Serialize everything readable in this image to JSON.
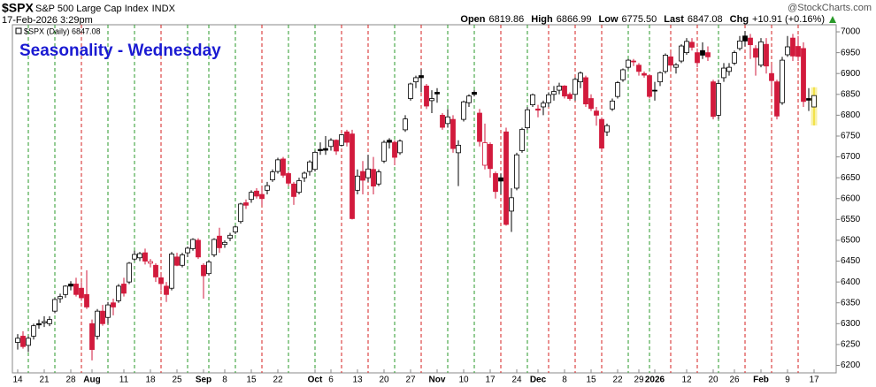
{
  "symbol": "$SPX",
  "name": "S&P 500 Large Cap Index",
  "exchange": "INDX",
  "datetime": "17-Feb-2026 3:29pm",
  "quote": {
    "open_label": "Open",
    "open": "6819.86",
    "high_label": "High",
    "high": "6866.99",
    "low_label": "Low",
    "low": "6775.50",
    "last_label": "Last",
    "last": "6847.08",
    "chg_label": "Chg",
    "chg": "+10.91 (+0.16%)"
  },
  "watermark": "@StockCharts.com",
  "chart_data": {
    "type": "candlestick",
    "title": "Seasonality - Wednesday",
    "legend": "$SPX (Daily) 6847.08",
    "up_color": "#000000",
    "down_color": "#d21a3c",
    "latest_color": "#f2e24a",
    "grid": false,
    "ylim": [
      6182,
      7017
    ],
    "yticks": [
      6200,
      6250,
      6300,
      6350,
      6400,
      6450,
      6500,
      6550,
      6600,
      6650,
      6700,
      6750,
      6800,
      6850,
      6900,
      6950,
      7000
    ],
    "categories": [
      "14",
      null,
      null,
      null,
      null,
      "21",
      null,
      null,
      null,
      null,
      "28",
      null,
      null,
      null,
      "Aug",
      null,
      null,
      null,
      null,
      null,
      "11",
      null,
      null,
      null,
      null,
      "18",
      null,
      null,
      null,
      null,
      "25",
      null,
      null,
      null,
      null,
      "Sep",
      null,
      null,
      null,
      "8",
      null,
      null,
      null,
      null,
      "15",
      null,
      null,
      null,
      null,
      "22",
      null,
      null,
      null,
      null,
      null,
      null,
      "Oct",
      null,
      null,
      "6",
      null,
      null,
      null,
      null,
      "13",
      null,
      null,
      null,
      null,
      "20",
      null,
      null,
      null,
      null,
      "27",
      null,
      null,
      null,
      null,
      "Nov",
      null,
      null,
      null,
      null,
      "10",
      null,
      null,
      null,
      null,
      "17",
      null,
      null,
      null,
      null,
      "24",
      null,
      null,
      null,
      "Dec",
      null,
      null,
      null,
      null,
      "8",
      null,
      null,
      null,
      null,
      "15",
      null,
      null,
      null,
      null,
      "22",
      null,
      null,
      null,
      "29",
      null,
      null,
      "2026",
      null,
      null,
      null,
      null,
      null,
      "12",
      null,
      null,
      null,
      null,
      "20",
      null,
      null,
      null,
      "26",
      null,
      null,
      null,
      null,
      "Feb",
      null,
      null,
      null,
      null,
      "9",
      null,
      null,
      null,
      null,
      "17"
    ],
    "ohlc": [
      [
        6255,
        6275,
        6238,
        6265
      ],
      [
        6270,
        6282,
        6240,
        6245
      ],
      [
        6248,
        6270,
        6232,
        6265
      ],
      [
        6270,
        6300,
        6262,
        6295
      ],
      [
        6300,
        6310,
        6288,
        6297
      ],
      [
        6302,
        6318,
        6292,
        6305
      ],
      [
        6300,
        6318,
        6294,
        6310
      ],
      [
        6330,
        6362,
        6325,
        6358
      ],
      [
        6360,
        6372,
        6350,
        6365
      ],
      [
        6370,
        6392,
        6362,
        6390
      ],
      [
        6395,
        6402,
        6380,
        6390
      ],
      [
        6395,
        6410,
        6365,
        6370
      ],
      [
        6385,
        6400,
        6355,
        6362
      ],
      [
        6370,
        6428,
        6335,
        6340
      ],
      [
        6300,
        6310,
        6212,
        6238
      ],
      [
        6270,
        6335,
        6262,
        6330
      ],
      [
        6330,
        6345,
        6295,
        6300
      ],
      [
        6315,
        6352,
        6300,
        6345
      ],
      [
        6350,
        6360,
        6320,
        6340
      ],
      [
        6355,
        6395,
        6350,
        6390
      ],
      [
        6395,
        6410,
        6365,
        6373
      ],
      [
        6400,
        6448,
        6395,
        6445
      ],
      [
        6455,
        6475,
        6450,
        6466
      ],
      [
        6458,
        6472,
        6450,
        6468
      ],
      [
        6470,
        6480,
        6442,
        6450
      ],
      [
        6445,
        6455,
        6435,
        6449
      ],
      [
        6440,
        6445,
        6400,
        6412
      ],
      [
        6410,
        6420,
        6380,
        6396
      ],
      [
        6390,
        6400,
        6352,
        6370
      ],
      [
        6385,
        6472,
        6380,
        6467
      ],
      [
        6460,
        6470,
        6438,
        6440
      ],
      [
        6440,
        6470,
        6435,
        6465
      ],
      [
        6470,
        6485,
        6460,
        6481
      ],
      [
        6480,
        6505,
        6475,
        6502
      ],
      [
        6500,
        6505,
        6455,
        6460
      ],
      [
        6440,
        6445,
        6360,
        6415
      ],
      [
        6420,
        6452,
        6415,
        6448
      ],
      [
        6465,
        6505,
        6460,
        6502
      ],
      [
        6510,
        6530,
        6470,
        6482
      ],
      [
        6490,
        6500,
        6482,
        6495
      ],
      [
        6505,
        6518,
        6498,
        6512
      ],
      [
        6520,
        6535,
        6515,
        6532
      ],
      [
        6545,
        6590,
        6540,
        6587
      ],
      [
        6590,
        6598,
        6575,
        6584
      ],
      [
        6598,
        6620,
        6590,
        6615
      ],
      [
        6618,
        6625,
        6600,
        6606
      ],
      [
        6610,
        6625,
        6585,
        6600
      ],
      [
        6620,
        6640,
        6610,
        6631
      ],
      [
        6645,
        6670,
        6640,
        6664
      ],
      [
        6665,
        6698,
        6660,
        6693
      ],
      [
        6695,
        6700,
        6650,
        6656
      ],
      [
        6660,
        6665,
        6630,
        6637
      ],
      [
        6635,
        6640,
        6585,
        6605
      ],
      [
        6615,
        6650,
        6610,
        6643
      ],
      [
        6650,
        6665,
        6640,
        6661
      ],
      [
        6665,
        6692,
        6655,
        6688
      ],
      [
        6670,
        6715,
        6665,
        6711
      ],
      [
        6718,
        6735,
        6705,
        6715
      ],
      [
        6720,
        6750,
        6705,
        6716
      ],
      [
        6725,
        6745,
        6715,
        6740
      ],
      [
        6740,
        6742,
        6705,
        6714
      ],
      [
        6728,
        6755,
        6725,
        6753
      ],
      [
        6760,
        6765,
        6725,
        6735
      ],
      [
        6755,
        6765,
        6550,
        6552
      ],
      [
        6620,
        6670,
        6610,
        6654
      ],
      [
        6665,
        6690,
        6610,
        6644
      ],
      [
        6650,
        6705,
        6640,
        6671
      ],
      [
        6670,
        6700,
        6610,
        6630
      ],
      [
        6635,
        6670,
        6630,
        6664
      ],
      [
        6690,
        6740,
        6685,
        6735
      ],
      [
        6740,
        6745,
        6720,
        6735
      ],
      [
        6735,
        6740,
        6680,
        6699
      ],
      [
        6710,
        6742,
        6705,
        6738
      ],
      [
        6765,
        6800,
        6760,
        6791
      ],
      [
        6840,
        6878,
        6835,
        6875
      ],
      [
        6880,
        6895,
        6865,
        6890
      ],
      [
        6895,
        6910,
        6855,
        6890
      ],
      [
        6870,
        6875,
        6815,
        6822
      ],
      [
        6835,
        6860,
        6805,
        6840
      ],
      [
        6855,
        6865,
        6830,
        6851
      ],
      [
        6800,
        6805,
        6765,
        6771
      ],
      [
        6780,
        6815,
        6770,
        6796
      ],
      [
        6790,
        6800,
        6710,
        6720
      ],
      [
        6710,
        6740,
        6630,
        6728
      ],
      [
        6790,
        6835,
        6785,
        6832
      ],
      [
        6830,
        6850,
        6820,
        6846
      ],
      [
        6855,
        6860,
        6845,
        6850
      ],
      [
        6805,
        6815,
        6725,
        6737
      ],
      [
        6680,
        6780,
        6670,
        6734
      ],
      [
        6730,
        6735,
        6650,
        6672
      ],
      [
        6660,
        6665,
        6600,
        6617
      ],
      [
        6650,
        6660,
        6610,
        6642
      ],
      [
        6760,
        6770,
        6535,
        6538
      ],
      [
        6570,
        6625,
        6520,
        6602
      ],
      [
        6625,
        6710,
        6620,
        6705
      ],
      [
        6715,
        6770,
        6710,
        6766
      ],
      [
        6770,
        6820,
        6765,
        6813
      ],
      [
        6825,
        6852,
        6820,
        6849
      ],
      [
        6815,
        6825,
        6795,
        6812
      ],
      [
        6820,
        6835,
        6800,
        6829
      ],
      [
        6830,
        6855,
        6820,
        6849
      ],
      [
        6850,
        6870,
        6835,
        6857
      ],
      [
        6860,
        6878,
        6850,
        6870
      ],
      [
        6870,
        6872,
        6840,
        6846
      ],
      [
        6850,
        6855,
        6835,
        6840
      ],
      [
        6850,
        6890,
        6835,
        6886
      ],
      [
        6880,
        6905,
        6865,
        6901
      ],
      [
        6890,
        6895,
        6820,
        6827
      ],
      [
        6840,
        6850,
        6810,
        6816
      ],
      [
        6810,
        6820,
        6775,
        6800
      ],
      [
        6790,
        6795,
        6715,
        6721
      ],
      [
        6760,
        6780,
        6750,
        6775
      ],
      [
        6815,
        6840,
        6810,
        6834
      ],
      [
        6845,
        6882,
        6840,
        6878
      ],
      [
        6885,
        6912,
        6880,
        6909
      ],
      [
        6915,
        6935,
        6910,
        6932
      ],
      [
        6930,
        6935,
        6918,
        6929
      ],
      [
        6920,
        6925,
        6895,
        6905
      ],
      [
        6900,
        6905,
        6890,
        6896
      ],
      [
        6895,
        6898,
        6840,
        6845
      ],
      [
        6860,
        6880,
        6835,
        6858
      ],
      [
        6880,
        6905,
        6870,
        6902
      ],
      [
        6905,
        6948,
        6900,
        6944
      ],
      [
        6940,
        6950,
        6910,
        6920
      ],
      [
        6915,
        6925,
        6900,
        6921
      ],
      [
        6930,
        6970,
        6925,
        6966
      ],
      [
        6950,
        6985,
        6945,
        6977
      ],
      [
        6975,
        6985,
        6955,
        6963
      ],
      [
        6950,
        6960,
        6915,
        6926
      ],
      [
        6955,
        6975,
        6935,
        6944
      ],
      [
        6950,
        6965,
        6930,
        6940
      ],
      [
        6880,
        6885,
        6790,
        6797
      ],
      [
        6800,
        6885,
        6790,
        6876
      ],
      [
        6890,
        6925,
        6880,
        6913
      ],
      [
        6905,
        6925,
        6895,
        6915
      ],
      [
        6925,
        6955,
        6920,
        6950
      ],
      [
        6960,
        6990,
        6955,
        6978
      ],
      [
        6990,
        7002,
        6965,
        6978
      ],
      [
        6985,
        6995,
        6935,
        6969
      ],
      [
        6960,
        6968,
        6895,
        6939
      ],
      [
        6920,
        6985,
        6915,
        6976
      ],
      [
        6970,
        6985,
        6900,
        6918
      ],
      [
        6900,
        6920,
        6850,
        6883
      ],
      [
        6880,
        6885,
        6790,
        6798
      ],
      [
        6830,
        6940,
        6825,
        6932
      ],
      [
        6945,
        6990,
        6940,
        6964
      ],
      [
        6985,
        6995,
        6930,
        6942
      ],
      [
        6965,
        6990,
        6930,
        6941
      ],
      [
        6960,
        6975,
        6820,
        6833
      ],
      [
        6840,
        6865,
        6810,
        6836
      ],
      [
        6819.86,
        6866.99,
        6775.5,
        6847.08
      ]
    ],
    "seasonality_lines": [
      {
        "day": 2,
        "color": "#2a9a2a"
      },
      {
        "day": 7,
        "color": "#2a9a2a"
      },
      {
        "day": 12,
        "color": "#d42020"
      },
      {
        "day": 17,
        "color": "#2a9a2a"
      },
      {
        "day": 22,
        "color": "#2a9a2a"
      },
      {
        "day": 27,
        "color": "#d42020"
      },
      {
        "day": 32,
        "color": "#2a9a2a"
      },
      {
        "day": 36,
        "color": "#2a9a2a"
      },
      {
        "day": 41,
        "color": "#2a9a2a"
      },
      {
        "day": 46,
        "color": "#d42020"
      },
      {
        "day": 51,
        "color": "#2a9a2a"
      },
      {
        "day": 56,
        "color": "#2a9a2a"
      },
      {
        "day": 61,
        "color": "#d42020"
      },
      {
        "day": 66,
        "color": "#d42020"
      },
      {
        "day": 71,
        "color": "#2a9a2a"
      },
      {
        "day": 76,
        "color": "#d42020"
      },
      {
        "day": 81,
        "color": "#2a9a2a"
      },
      {
        "day": 86,
        "color": "#2a9a2a"
      },
      {
        "day": 91,
        "color": "#d42020"
      },
      {
        "day": 96,
        "color": "#2a9a2a"
      },
      {
        "day": 100,
        "color": "#d42020"
      },
      {
        "day": 105,
        "color": "#d42020"
      },
      {
        "day": 110,
        "color": "#d42020"
      },
      {
        "day": 115,
        "color": "#2a9a2a"
      },
      {
        "day": 119,
        "color": "#2a9a2a"
      },
      {
        "day": 123,
        "color": "#d42020"
      },
      {
        "day": 128,
        "color": "#d42020"
      },
      {
        "day": 132,
        "color": "#2a9a2a"
      },
      {
        "day": 137,
        "color": "#d42020"
      },
      {
        "day": 142,
        "color": "#d42020"
      },
      {
        "day": 147,
        "color": "#d42020"
      }
    ]
  }
}
